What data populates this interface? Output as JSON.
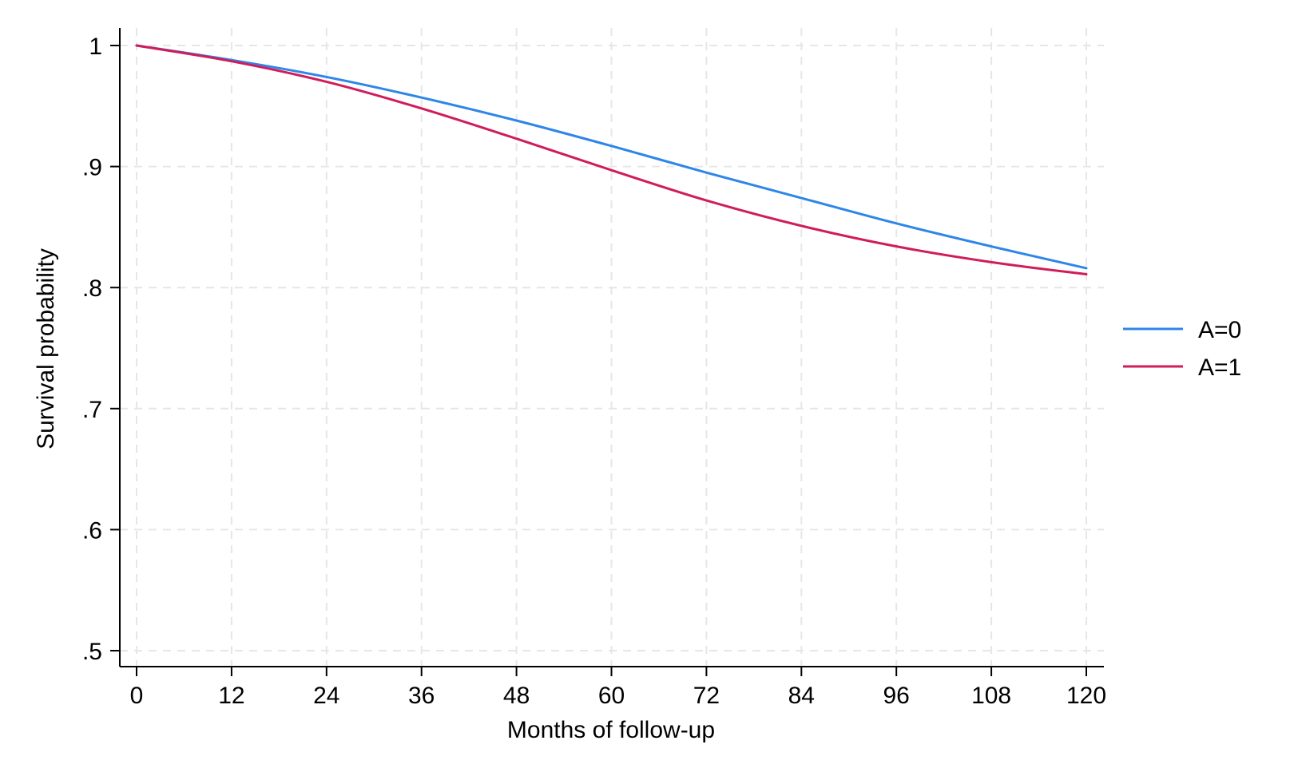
{
  "chart_data": {
    "type": "line",
    "xlabel": "Months of follow-up",
    "ylabel": "Survival probability",
    "xlim": [
      0,
      120
    ],
    "ylim": [
      0.5,
      1.0
    ],
    "x_ticks": [
      0,
      12,
      24,
      36,
      48,
      60,
      72,
      84,
      96,
      108,
      120
    ],
    "x_tick_labels": [
      "0",
      "12",
      "24",
      "36",
      "48",
      "60",
      "72",
      "84",
      "96",
      "108",
      "120"
    ],
    "y_ticks": [
      0.5,
      0.6,
      0.7,
      0.8,
      0.9,
      1.0
    ],
    "y_tick_labels": [
      ".5",
      ".6",
      ".7",
      ".8",
      ".9",
      "1"
    ],
    "grid": true,
    "legend_position": "right",
    "x": [
      0,
      12,
      24,
      36,
      48,
      60,
      72,
      84,
      96,
      108,
      120
    ],
    "series": [
      {
        "name": "A=0",
        "color": "#2E86E8",
        "values": [
          1.0,
          0.988,
          0.974,
          0.957,
          0.938,
          0.917,
          0.895,
          0.874,
          0.853,
          0.834,
          0.816
        ]
      },
      {
        "name": "A=1",
        "color": "#D01C5B",
        "values": [
          1.0,
          0.987,
          0.97,
          0.948,
          0.923,
          0.897,
          0.872,
          0.851,
          0.834,
          0.821,
          0.811
        ]
      }
    ]
  }
}
